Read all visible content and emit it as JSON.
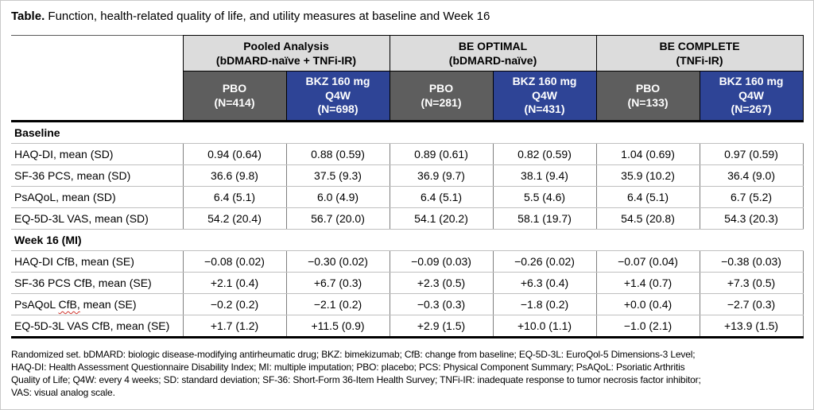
{
  "title": {
    "prefix": "Table.",
    "text": " Function, health-related quality of life, and utility measures at baseline and Week 16"
  },
  "colors": {
    "bkz_blue": "#2e4496",
    "pbo_gray": "#5e5e5e",
    "group_gray": "#dcdcdc",
    "spellcheck_red": "#d0342c"
  },
  "table": {
    "groups": [
      {
        "name": "Pooled Analysis",
        "sub": "(bDMARD-naïve + TNFi-IR)"
      },
      {
        "name": "BE OPTIMAL",
        "sub": "(bDMARD-naïve)"
      },
      {
        "name": "BE COMPLETE",
        "sub": "(TNFi-IR)"
      }
    ],
    "arms": [
      {
        "lines": [
          "PBO",
          "(N=414)"
        ]
      },
      {
        "lines": [
          "BKZ 160 mg",
          "Q4W",
          "(N=698)"
        ]
      },
      {
        "lines": [
          "PBO",
          "(N=281)"
        ]
      },
      {
        "lines": [
          "BKZ 160 mg",
          "Q4W",
          "(N=431)"
        ]
      },
      {
        "lines": [
          "PBO",
          "(N=133)"
        ]
      },
      {
        "lines": [
          "BKZ 160 mg",
          "Q4W",
          "(N=267)"
        ]
      }
    ],
    "sections": [
      {
        "header": "Baseline",
        "rows": [
          {
            "label": "HAQ-DI, mean (SD)",
            "values": [
              "0.94 (0.64)",
              "0.88 (0.59)",
              "0.89 (0.61)",
              "0.82 (0.59)",
              "1.04 (0.69)",
              "0.97 (0.59)"
            ]
          },
          {
            "label": "SF-36 PCS, mean (SD)",
            "values": [
              "36.6 (9.8)",
              "37.5 (9.3)",
              "36.9 (9.7)",
              "38.1 (9.4)",
              "35.9 (10.2)",
              "36.4 (9.0)"
            ]
          },
          {
            "label": "PsAQoL, mean (SD)",
            "values": [
              "6.4 (5.1)",
              "6.0 (4.9)",
              "6.4 (5.1)",
              "5.5 (4.6)",
              "6.4 (5.1)",
              "6.7 (5.2)"
            ]
          },
          {
            "label": "EQ-5D-3L VAS, mean (SD)",
            "values": [
              "54.2 (20.4)",
              "56.7 (20.0)",
              "54.1 (20.2)",
              "58.1 (19.7)",
              "54.5 (20.8)",
              "54.3 (20.3)"
            ]
          }
        ]
      },
      {
        "header": "Week 16 (MI)",
        "rows": [
          {
            "label": "HAQ-DI CfB, mean (SE)",
            "values": [
              "−0.08 (0.02)",
              "−0.30 (0.02)",
              "−0.09 (0.03)",
              "−0.26 (0.02)",
              "−0.07 (0.04)",
              "−0.38 (0.03)"
            ]
          },
          {
            "label": "SF-36 PCS CfB, mean (SE)",
            "values": [
              "+2.1 (0.4)",
              "+6.7 (0.3)",
              "+2.3 (0.5)",
              "+6.3 (0.4)",
              "+1.4 (0.7)",
              "+7.3 (0.5)"
            ]
          },
          {
            "label_pre": "PsAQoL ",
            "label_flagged": "CfB,",
            "label_post": " mean (SE)",
            "values": [
              "−0.2 (0.2)",
              "−2.1 (0.2)",
              "−0.3 (0.3)",
              "−1.8 (0.2)",
              "+0.0 (0.4)",
              "−2.7 (0.3)"
            ]
          },
          {
            "label": "EQ-5D-3L VAS CfB, mean (SE)",
            "values": [
              "+1.7 (1.2)",
              "+11.5 (0.9)",
              "+2.9 (1.5)",
              "+10.0 (1.1)",
              "−1.0 (2.1)",
              "+13.9 (1.5)"
            ]
          }
        ]
      }
    ]
  },
  "footnote": {
    "lines": [
      "Randomized set. bDMARD: biologic disease-modifying antirheumatic drug; BKZ: bimekizumab; CfB: change from baseline; EQ-5D-3L: EuroQol-5 Dimensions-3 Level;",
      "HAQ-DI: Health Assessment Questionnaire Disability Index; MI: multiple imputation; PBO: placebo; PCS: Physical Component Summary; PsAQoL: Psoriatic Arthritis",
      "Quality of Life; Q4W: every 4 weeks; SD: standard deviation; SF-36: Short-Form 36-Item Health Survey; TNFi-IR: inadequate response to tumor necrosis factor inhibitor;",
      "VAS: visual analog scale."
    ]
  }
}
